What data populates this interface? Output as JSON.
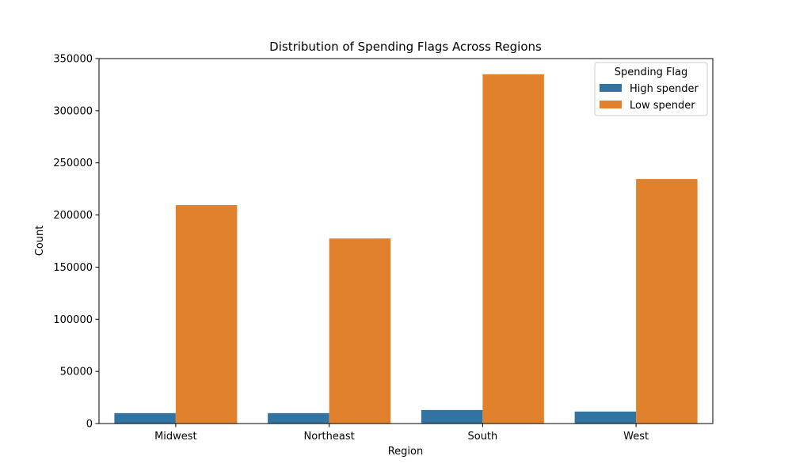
{
  "chart_data": {
    "type": "bar",
    "title": "Distribution of Spending Flags Across Regions",
    "xlabel": "Region",
    "ylabel": "Count",
    "categories": [
      "Midwest",
      "Northeast",
      "South",
      "West"
    ],
    "ylim": [
      0,
      350000
    ],
    "yticks": [
      "0",
      "50000",
      "100000",
      "150000",
      "200000",
      "250000",
      "300000",
      "350000"
    ],
    "legend": {
      "title": "Spending Flag",
      "placement": "top-right"
    },
    "grid": false,
    "series": [
      {
        "name": "High spender",
        "color": "#3274a1",
        "values": [
          10000,
          10000,
          13000,
          11500
        ]
      },
      {
        "name": "Low spender",
        "color": "#e1812c",
        "values": [
          209500,
          177500,
          335000,
          234500
        ]
      }
    ]
  }
}
